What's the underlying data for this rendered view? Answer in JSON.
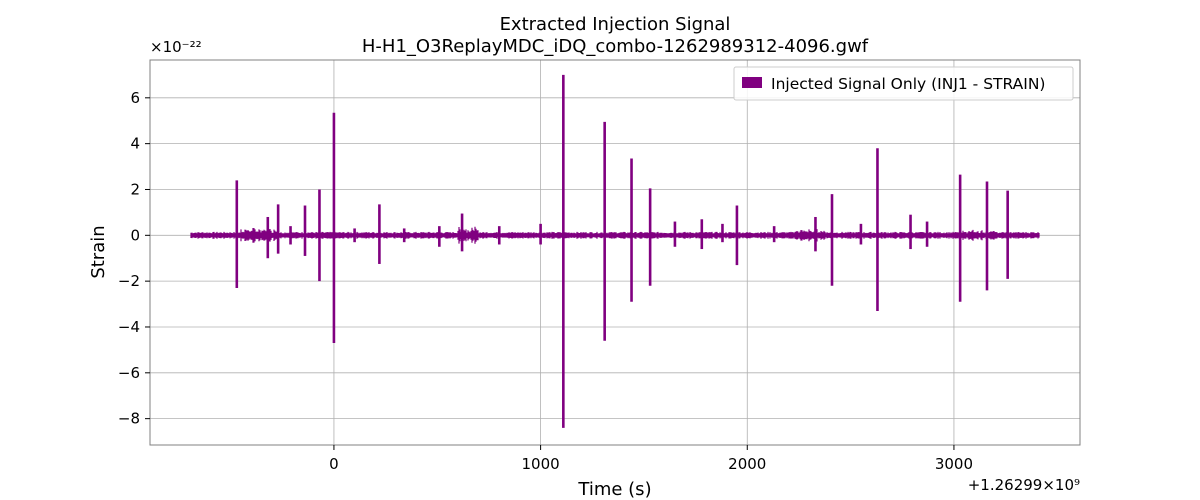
{
  "chart_data": {
    "type": "line",
    "title": "Extracted Injection Signal",
    "subtitle": "H-H1_O3ReplayMDC_iDQ_combo-1262989312-4096.gwf",
    "xlabel": "Time (s)",
    "ylabel": "Strain",
    "y_exponent_label": "×10⁻²²",
    "x_offset_label": "+1.26299×10⁹",
    "xlim": [
      -890,
      3610
    ],
    "ylim": [
      -9.15,
      7.65
    ],
    "x_ticks": [
      0,
      1000,
      2000,
      3000
    ],
    "x_tick_labels": [
      "0",
      "1000",
      "2000",
      "3000"
    ],
    "y_ticks": [
      -8,
      -6,
      -4,
      -2,
      0,
      2,
      4,
      6
    ],
    "y_tick_labels": [
      "−8",
      "−6",
      "−4",
      "−2",
      "0",
      "2",
      "4",
      "6"
    ],
    "grid": true,
    "legend_position": "top-right",
    "colors": {
      "series": "#800080",
      "grid": "#b0b0b0",
      "frame": "#808080"
    },
    "series": [
      {
        "name": "Injected Signal Only (INJ1 - STRAIN)",
        "x_range": [
          -690,
          3410
        ],
        "baseline_amplitude": 0.15,
        "noisy_regions": [
          [
            -450,
            -270,
            0.35
          ],
          [
            600,
            700,
            0.4
          ],
          [
            2230,
            2380,
            0.3
          ],
          [
            3040,
            3200,
            0.25
          ]
        ],
        "spikes": [
          {
            "x": -470,
            "max": 2.4,
            "min": -2.3
          },
          {
            "x": -320,
            "max": 0.8,
            "min": -1.0
          },
          {
            "x": -270,
            "max": 1.35,
            "min": -0.8
          },
          {
            "x": -210,
            "max": 0.4,
            "min": -0.4
          },
          {
            "x": -140,
            "max": 1.3,
            "min": -0.9
          },
          {
            "x": -70,
            "max": 2.0,
            "min": -2.0
          },
          {
            "x": 0,
            "max": 5.35,
            "min": -4.7
          },
          {
            "x": 100,
            "max": 0.3,
            "min": -0.3
          },
          {
            "x": 220,
            "max": 1.35,
            "min": -1.25
          },
          {
            "x": 340,
            "max": 0.3,
            "min": -0.3
          },
          {
            "x": 510,
            "max": 0.4,
            "min": -0.5
          },
          {
            "x": 620,
            "max": 0.95,
            "min": -0.7
          },
          {
            "x": 800,
            "max": 0.4,
            "min": -0.4
          },
          {
            "x": 1000,
            "max": 0.5,
            "min": -0.4
          },
          {
            "x": 1110,
            "max": 7.0,
            "min": -8.4
          },
          {
            "x": 1310,
            "max": 4.95,
            "min": -4.6
          },
          {
            "x": 1440,
            "max": 3.35,
            "min": -2.9
          },
          {
            "x": 1530,
            "max": 2.05,
            "min": -2.2
          },
          {
            "x": 1650,
            "max": 0.6,
            "min": -0.5
          },
          {
            "x": 1780,
            "max": 0.7,
            "min": -0.6
          },
          {
            "x": 1880,
            "max": 0.5,
            "min": -0.3
          },
          {
            "x": 1950,
            "max": 1.3,
            "min": -1.3
          },
          {
            "x": 2130,
            "max": 0.4,
            "min": -0.3
          },
          {
            "x": 2330,
            "max": 0.8,
            "min": -0.7
          },
          {
            "x": 2410,
            "max": 1.8,
            "min": -2.2
          },
          {
            "x": 2550,
            "max": 0.5,
            "min": -0.4
          },
          {
            "x": 2630,
            "max": 3.8,
            "min": -3.3
          },
          {
            "x": 2790,
            "max": 0.9,
            "min": -0.6
          },
          {
            "x": 2870,
            "max": 0.6,
            "min": -0.5
          },
          {
            "x": 3030,
            "max": 2.65,
            "min": -2.9
          },
          {
            "x": 3160,
            "max": 2.35,
            "min": -2.4
          },
          {
            "x": 3260,
            "max": 1.95,
            "min": -1.9
          }
        ]
      }
    ]
  }
}
